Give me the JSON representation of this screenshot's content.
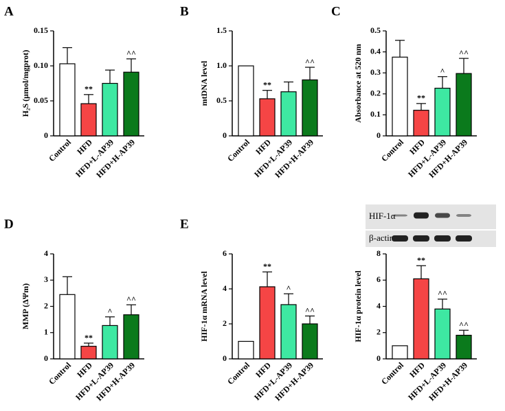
{
  "chart_data": [
    {
      "type": "bar",
      "panel": "A",
      "ylabel": "H₂S (μmol/mgprot)",
      "categories": [
        "Control",
        "HFD",
        "HFD+L-AP39",
        "HFD+H-AP39"
      ],
      "values": [
        0.103,
        0.046,
        0.075,
        0.091
      ],
      "errors": [
        0.023,
        0.013,
        0.019,
        0.019
      ],
      "annotations": [
        null,
        "**",
        null,
        "^^"
      ],
      "colors": [
        "#ffffff",
        "#f54545",
        "#3ee8a2",
        "#0b7a1c"
      ],
      "ylim": [
        0,
        0.15
      ],
      "yticks": [
        0,
        {
          "value": 0.05,
          "label": "0.05"
        },
        {
          "value": 0.1,
          "label": "0.10"
        },
        {
          "value": 0.15,
          "label": "0.15"
        }
      ]
    },
    {
      "type": "bar",
      "panel": "B",
      "ylabel": "mtDNA level",
      "categories": [
        "Control",
        "HFD",
        "HFD+L-AP39",
        "HFD+H-AP39"
      ],
      "values": [
        1.0,
        0.53,
        0.63,
        0.8
      ],
      "errors": [
        null,
        0.12,
        0.14,
        0.18
      ],
      "annotations": [
        null,
        "**",
        null,
        "^^"
      ],
      "colors": [
        "#ffffff",
        "#f54545",
        "#3ee8a2",
        "#0b7a1c"
      ],
      "ylim": [
        0,
        1.5
      ],
      "yticks": [
        0,
        0.5,
        {
          "value": 1,
          "label": "1.0"
        },
        1.5
      ]
    },
    {
      "type": "bar",
      "panel": "C",
      "ylabel": "Absorbance at 520 nm",
      "categories": [
        "Control",
        "HFD",
        "HFD+L-AP39",
        "HFD+H-AP39"
      ],
      "values": [
        0.375,
        0.122,
        0.227,
        0.297
      ],
      "errors": [
        0.08,
        0.032,
        0.055,
        0.072
      ],
      "annotations": [
        null,
        "**",
        "^",
        "^^"
      ],
      "colors": [
        "#ffffff",
        "#f54545",
        "#3ee8a2",
        "#0b7a1c"
      ],
      "ylim": [
        0,
        0.5
      ],
      "yticks": [
        0,
        0.1,
        0.2,
        0.3,
        0.4,
        0.5
      ]
    },
    {
      "type": "bar",
      "panel": "D",
      "ylabel": "MMP (ΔΨm)",
      "categories": [
        "Control",
        "HFD",
        "HFD+L-AP39",
        "HFD+H-AP39"
      ],
      "values": [
        2.45,
        0.48,
        1.27,
        1.68
      ],
      "errors": [
        0.68,
        0.12,
        0.33,
        0.38
      ],
      "annotations": [
        null,
        "**",
        "^",
        "^^"
      ],
      "colors": [
        "#ffffff",
        "#f54545",
        "#3ee8a2",
        "#0b7a1c"
      ],
      "ylim": [
        0,
        4
      ],
      "yticks": [
        0,
        1,
        2,
        3,
        4
      ]
    },
    {
      "type": "bar",
      "panel": "E",
      "ylabel": "HIF-1α mRNA level",
      "categories": [
        "Control",
        "HFD",
        "HFD+L-AP39",
        "HFD+H-AP39"
      ],
      "values": [
        1.0,
        4.12,
        3.1,
        2.0
      ],
      "errors": [
        null,
        0.85,
        0.62,
        0.45
      ],
      "annotations": [
        null,
        "**",
        "^",
        "^^"
      ],
      "colors": [
        "#ffffff",
        "#f54545",
        "#3ee8a2",
        "#0b7a1c"
      ],
      "ylim": [
        0,
        6
      ],
      "yticks": [
        0,
        2,
        4,
        6
      ]
    },
    {
      "type": "bar",
      "ylabel": "HIF-1α protein level",
      "blot_labels": [
        "HIF-1α",
        "β-actin"
      ],
      "categories": [
        "Control",
        "HFD",
        "HFD+L-AP39",
        "HFD+H-AP39"
      ],
      "values": [
        1.0,
        6.1,
        3.8,
        1.8
      ],
      "errors": [
        null,
        1.0,
        0.75,
        0.38
      ],
      "annotations": [
        null,
        "**",
        "^^",
        "^^"
      ],
      "colors": [
        "#ffffff",
        "#f54545",
        "#3ee8a2",
        "#0b7a1c"
      ],
      "ylim": [
        0,
        8
      ],
      "yticks": [
        0,
        2,
        4,
        6,
        8
      ]
    }
  ]
}
